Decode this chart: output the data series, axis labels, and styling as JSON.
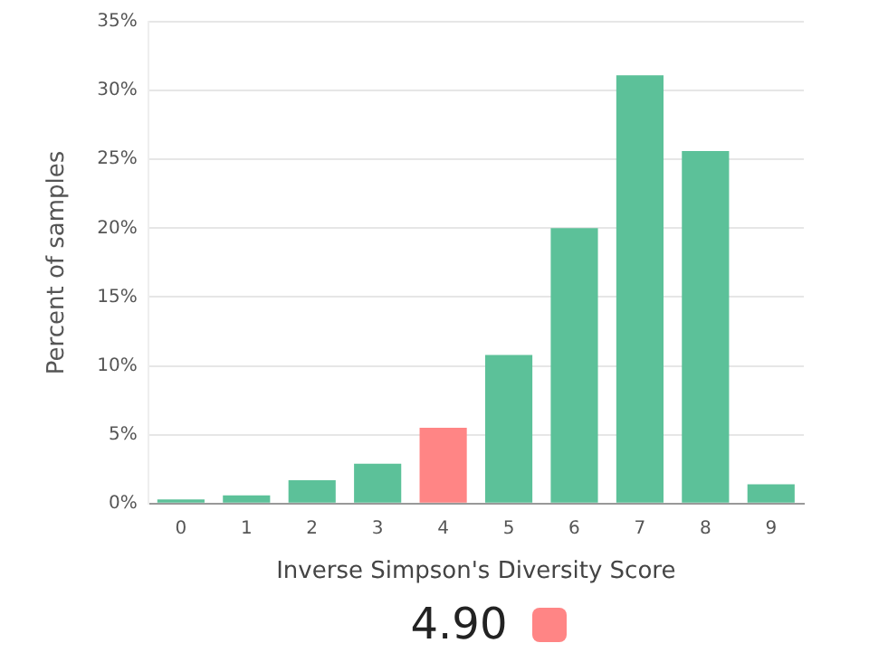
{
  "chart_data": {
    "type": "bar",
    "xlabel": "Inverse Simpson's Diversity Score",
    "ylabel": "Percent of samples",
    "categories": [
      "0",
      "1",
      "2",
      "3",
      "4",
      "5",
      "6",
      "7",
      "8",
      "9"
    ],
    "values": [
      0.3,
      0.6,
      1.7,
      2.9,
      5.5,
      10.8,
      20.0,
      31.1,
      25.6,
      1.4
    ],
    "colors": [
      "#5cc199",
      "#5cc199",
      "#5cc199",
      "#5cc199",
      "#ff8585",
      "#5cc199",
      "#5cc199",
      "#5cc199",
      "#5cc199",
      "#5cc199"
    ],
    "ylim": [
      0,
      35
    ],
    "yticks": [
      {
        "value": 0,
        "label": "0%"
      },
      {
        "value": 5,
        "label": "5%"
      },
      {
        "value": 10,
        "label": "10%"
      },
      {
        "value": 15,
        "label": "15%"
      },
      {
        "value": 20,
        "label": "20%"
      },
      {
        "value": 25,
        "label": "25%"
      },
      {
        "value": 30,
        "label": "30%"
      },
      {
        "value": 35,
        "label": "35%"
      }
    ],
    "grid": "y",
    "legend": false,
    "annotations": [
      "4.90"
    ]
  }
}
